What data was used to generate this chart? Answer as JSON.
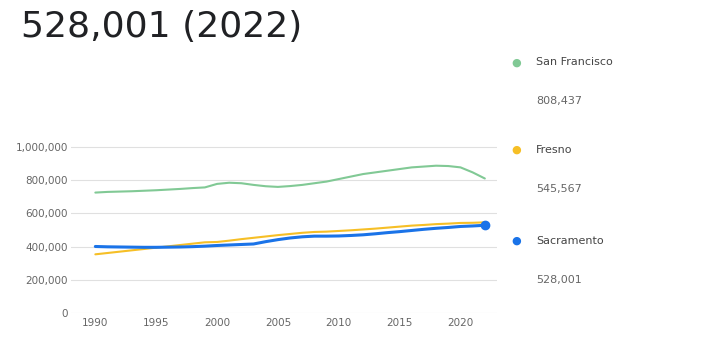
{
  "title": "528,001 (2022)",
  "title_fontsize": 26,
  "title_color": "#202124",
  "background_color": "#ffffff",
  "xlim": [
    1988,
    2023
  ],
  "ylim": [
    0,
    1050000
  ],
  "yticks": [
    0,
    200000,
    400000,
    600000,
    800000,
    1000000
  ],
  "xticks": [
    1990,
    1995,
    2000,
    2005,
    2010,
    2015,
    2020
  ],
  "grid_color": "#e0e0e0",
  "series": {
    "san_francisco": {
      "label": "San Francisco",
      "value_label": "808,437",
      "color": "#81c995",
      "linewidth": 1.5,
      "years": [
        1990,
        1991,
        1992,
        1993,
        1994,
        1995,
        1996,
        1997,
        1998,
        1999,
        2000,
        2001,
        2002,
        2003,
        2004,
        2005,
        2006,
        2007,
        2008,
        2009,
        2010,
        2011,
        2012,
        2013,
        2014,
        2015,
        2016,
        2017,
        2018,
        2019,
        2020,
        2021,
        2022
      ],
      "values": [
        724000,
        728000,
        730000,
        732000,
        735000,
        738000,
        742000,
        746000,
        751000,
        755000,
        776000,
        783000,
        780000,
        770000,
        762000,
        758000,
        763000,
        770000,
        780000,
        790000,
        805000,
        820000,
        835000,
        845000,
        855000,
        865000,
        875000,
        880000,
        885000,
        883000,
        875000,
        845000,
        808437
      ]
    },
    "fresno": {
      "label": "Fresno",
      "value_label": "545,567",
      "color": "#f6bf26",
      "linewidth": 1.5,
      "years": [
        1990,
        1991,
        1992,
        1993,
        1994,
        1995,
        1996,
        1997,
        1998,
        1999,
        2000,
        2001,
        2002,
        2003,
        2004,
        2005,
        2006,
        2007,
        2008,
        2009,
        2010,
        2011,
        2012,
        2013,
        2014,
        2015,
        2016,
        2017,
        2018,
        2019,
        2020,
        2021,
        2022
      ],
      "values": [
        354000,
        362000,
        370000,
        378000,
        386000,
        394000,
        402000,
        410000,
        418000,
        426000,
        428000,
        436000,
        445000,
        453000,
        461000,
        469000,
        476000,
        483000,
        488000,
        490000,
        494000,
        498000,
        503000,
        508000,
        514000,
        520000,
        526000,
        530000,
        535000,
        538000,
        542000,
        543000,
        545567
      ]
    },
    "sacramento": {
      "label": "Sacramento",
      "value_label": "528,001",
      "color": "#1a73e8",
      "linewidth": 2.2,
      "years": [
        1990,
        1991,
        1992,
        1993,
        1994,
        1995,
        1996,
        1997,
        1998,
        1999,
        2000,
        2001,
        2002,
        2003,
        2004,
        2005,
        2006,
        2007,
        2008,
        2009,
        2010,
        2011,
        2012,
        2013,
        2014,
        2015,
        2016,
        2017,
        2018,
        2019,
        2020,
        2021,
        2022
      ],
      "values": [
        401000,
        399000,
        398000,
        397000,
        396000,
        396000,
        397000,
        398000,
        400000,
        403000,
        407000,
        410000,
        413000,
        416000,
        430000,
        442000,
        452000,
        459000,
        463000,
        463000,
        464000,
        467000,
        471000,
        477000,
        484000,
        490000,
        497000,
        504000,
        510000,
        515000,
        521000,
        524000,
        528001
      ]
    }
  },
  "legend_items": [
    "san_francisco",
    "fresno",
    "sacramento"
  ],
  "dot_marker": "●"
}
